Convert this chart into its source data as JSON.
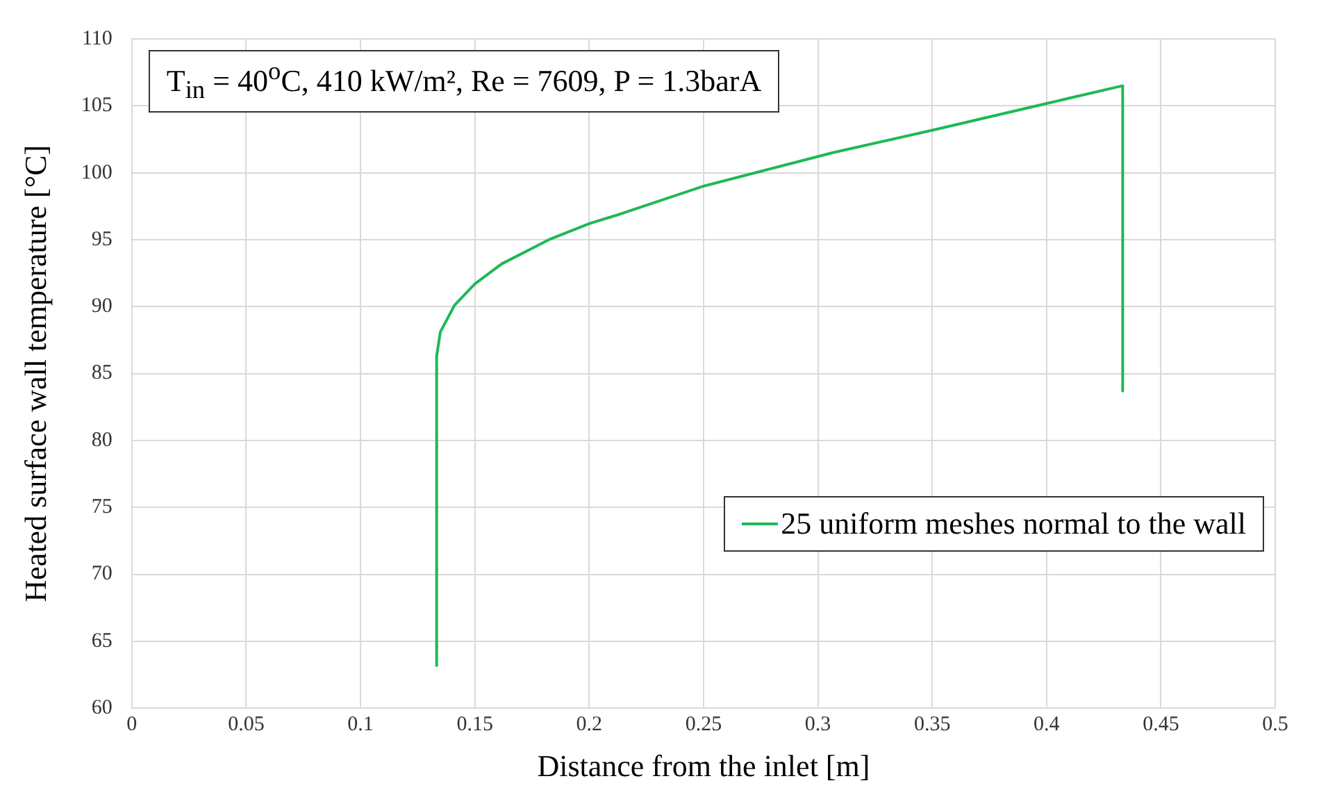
{
  "chart_data": {
    "type": "line",
    "xlabel": "Distance from the inlet [m]",
    "ylabel": "Heated surface wall temperature [°C]",
    "annotations": [
      "T$_{in}$ = 40$^{o}$C, 410 kW/m², Re = 7609, P = 1.3barA"
    ],
    "series": [
      {
        "name": "25 uniform meshes normal to the wall",
        "color": "#1db954",
        "x": [
          0.1333,
          0.1333,
          0.1349,
          0.1411,
          0.15,
          0.1618,
          0.1824,
          0.2,
          0.2114,
          0.25,
          0.3065,
          0.3506,
          0.4006,
          0.4333,
          0.4333
        ],
        "values": [
          63.1,
          86.3,
          88.1,
          90.1,
          91.7,
          93.2,
          95,
          96.2,
          96.8,
          99,
          101.5,
          103.2,
          105.2,
          106.5,
          83.7
        ]
      }
    ],
    "xlim": [
      0,
      0.5
    ],
    "xticks": [
      0,
      0.05,
      0.1,
      0.15,
      0.2,
      0.25,
      0.3,
      0.35,
      0.4,
      0.45,
      0.5
    ],
    "ylim": [
      60,
      110
    ],
    "yticks": [
      60,
      65,
      70,
      75,
      80,
      85,
      90,
      95,
      100,
      105,
      110
    ],
    "grid": true,
    "legend": "bottom right",
    "marker": "none",
    "line_style": "solid"
  }
}
